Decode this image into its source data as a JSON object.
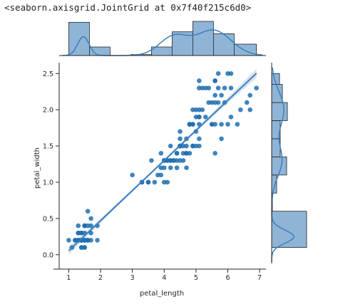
{
  "caption": "<seaborn.axisgrid.JointGrid at 0x7f40f215c6d0>",
  "colors": {
    "point": "#1f6fb0",
    "line": "#3a7fc0",
    "bar_fill": "#8fb4d6",
    "bar_edge": "#262626",
    "band": "#c8d7e6",
    "axis": "#262626"
  },
  "chart_data": {
    "type": "scatter",
    "title": "",
    "xlabel": "petal_length",
    "ylabel": "petal_width",
    "xlim": [
      0.7,
      7.2
    ],
    "ylim": [
      -0.12,
      2.65
    ],
    "xticks": [
      1,
      2,
      3,
      4,
      5,
      6,
      7
    ],
    "yticks": [
      0.0,
      0.5,
      1.0,
      1.5,
      2.0,
      2.5
    ],
    "ytick_labels": [
      "0.0",
      "0.5",
      "1.0",
      "1.5",
      "2.0",
      "2.5"
    ],
    "regression": {
      "intercept": -0.36,
      "slope": 0.415,
      "x_range": [
        1.0,
        6.9
      ]
    },
    "marginal_x": {
      "bin_edges": [
        1.0,
        1.65,
        2.3,
        2.95,
        3.6,
        4.25,
        4.9,
        5.55,
        6.2,
        6.9
      ],
      "counts": [
        35,
        9,
        0,
        1,
        9,
        25,
        36,
        23,
        12
      ]
    },
    "marginal_y": {
      "bin_edges": [
        0.1,
        0.6,
        0.85,
        1.1,
        1.35,
        1.6,
        1.85,
        2.1,
        2.35,
        2.5
      ],
      "counts": [
        49,
        1,
        7,
        21,
        12,
        12,
        22,
        15,
        11
      ]
    },
    "points": [
      [
        1.4,
        0.2
      ],
      [
        1.4,
        0.2
      ],
      [
        1.3,
        0.2
      ],
      [
        1.5,
        0.2
      ],
      [
        1.4,
        0.2
      ],
      [
        1.7,
        0.4
      ],
      [
        1.4,
        0.3
      ],
      [
        1.5,
        0.2
      ],
      [
        1.4,
        0.2
      ],
      [
        1.5,
        0.1
      ],
      [
        1.5,
        0.2
      ],
      [
        1.6,
        0.2
      ],
      [
        1.4,
        0.1
      ],
      [
        1.1,
        0.1
      ],
      [
        1.2,
        0.2
      ],
      [
        1.5,
        0.4
      ],
      [
        1.3,
        0.4
      ],
      [
        1.4,
        0.3
      ],
      [
        1.7,
        0.3
      ],
      [
        1.5,
        0.3
      ],
      [
        1.7,
        0.2
      ],
      [
        1.5,
        0.4
      ],
      [
        1.0,
        0.2
      ],
      [
        1.7,
        0.5
      ],
      [
        1.9,
        0.2
      ],
      [
        1.6,
        0.2
      ],
      [
        1.6,
        0.4
      ],
      [
        1.5,
        0.2
      ],
      [
        1.4,
        0.2
      ],
      [
        1.6,
        0.2
      ],
      [
        1.6,
        0.2
      ],
      [
        1.5,
        0.4
      ],
      [
        1.5,
        0.1
      ],
      [
        1.4,
        0.2
      ],
      [
        1.5,
        0.2
      ],
      [
        1.2,
        0.2
      ],
      [
        1.3,
        0.2
      ],
      [
        1.4,
        0.1
      ],
      [
        1.3,
        0.2
      ],
      [
        1.5,
        0.2
      ],
      [
        1.3,
        0.3
      ],
      [
        1.3,
        0.3
      ],
      [
        1.3,
        0.2
      ],
      [
        1.6,
        0.6
      ],
      [
        1.9,
        0.4
      ],
      [
        1.4,
        0.3
      ],
      [
        1.6,
        0.2
      ],
      [
        1.4,
        0.2
      ],
      [
        1.5,
        0.2
      ],
      [
        1.4,
        0.2
      ],
      [
        4.7,
        1.4
      ],
      [
        4.5,
        1.5
      ],
      [
        4.9,
        1.5
      ],
      [
        4.0,
        1.3
      ],
      [
        4.6,
        1.5
      ],
      [
        4.5,
        1.3
      ],
      [
        4.7,
        1.6
      ],
      [
        3.3,
        1.0
      ],
      [
        4.6,
        1.3
      ],
      [
        3.9,
        1.4
      ],
      [
        3.5,
        1.0
      ],
      [
        4.2,
        1.5
      ],
      [
        4.0,
        1.0
      ],
      [
        4.7,
        1.4
      ],
      [
        3.6,
        1.3
      ],
      [
        4.4,
        1.4
      ],
      [
        4.5,
        1.5
      ],
      [
        4.1,
        1.0
      ],
      [
        4.5,
        1.5
      ],
      [
        3.9,
        1.1
      ],
      [
        4.8,
        1.8
      ],
      [
        4.0,
        1.3
      ],
      [
        4.9,
        1.5
      ],
      [
        4.7,
        1.2
      ],
      [
        4.3,
        1.3
      ],
      [
        4.4,
        1.4
      ],
      [
        4.8,
        1.4
      ],
      [
        5.0,
        1.7
      ],
      [
        4.5,
        1.5
      ],
      [
        3.5,
        1.0
      ],
      [
        3.8,
        1.1
      ],
      [
        3.7,
        1.0
      ],
      [
        3.9,
        1.2
      ],
      [
        5.1,
        1.6
      ],
      [
        4.5,
        1.5
      ],
      [
        4.5,
        1.6
      ],
      [
        4.7,
        1.5
      ],
      [
        4.4,
        1.3
      ],
      [
        4.1,
        1.3
      ],
      [
        4.0,
        1.3
      ],
      [
        4.4,
        1.2
      ],
      [
        4.6,
        1.4
      ],
      [
        4.0,
        1.2
      ],
      [
        3.3,
        1.0
      ],
      [
        4.2,
        1.3
      ],
      [
        4.2,
        1.2
      ],
      [
        4.2,
        1.3
      ],
      [
        4.3,
        1.3
      ],
      [
        3.0,
        1.1
      ],
      [
        4.1,
        1.3
      ],
      [
        6.0,
        2.5
      ],
      [
        5.1,
        1.9
      ],
      [
        5.9,
        2.1
      ],
      [
        5.6,
        1.8
      ],
      [
        5.8,
        2.2
      ],
      [
        6.6,
        2.1
      ],
      [
        4.5,
        1.7
      ],
      [
        6.3,
        1.8
      ],
      [
        5.8,
        1.8
      ],
      [
        6.1,
        2.5
      ],
      [
        5.1,
        2.0
      ],
      [
        5.3,
        1.9
      ],
      [
        5.5,
        2.1
      ],
      [
        5.0,
        2.0
      ],
      [
        5.1,
        2.4
      ],
      [
        5.3,
        2.3
      ],
      [
        5.5,
        1.8
      ],
      [
        6.7,
        2.2
      ],
      [
        6.9,
        2.3
      ],
      [
        5.0,
        1.5
      ],
      [
        5.7,
        2.3
      ],
      [
        4.9,
        2.0
      ],
      [
        6.7,
        2.0
      ],
      [
        4.9,
        1.8
      ],
      [
        5.7,
        2.1
      ],
      [
        6.0,
        1.8
      ],
      [
        4.8,
        1.8
      ],
      [
        4.9,
        1.8
      ],
      [
        5.6,
        2.1
      ],
      [
        5.8,
        1.6
      ],
      [
        6.1,
        1.9
      ],
      [
        6.4,
        2.0
      ],
      [
        5.6,
        2.2
      ],
      [
        5.1,
        1.5
      ],
      [
        5.6,
        1.4
      ],
      [
        6.1,
        2.3
      ],
      [
        5.6,
        2.4
      ],
      [
        5.5,
        1.8
      ],
      [
        4.8,
        1.8
      ],
      [
        5.4,
        2.1
      ],
      [
        5.6,
        2.4
      ],
      [
        5.1,
        2.3
      ],
      [
        5.1,
        1.9
      ],
      [
        5.9,
        2.3
      ],
      [
        5.7,
        2.5
      ],
      [
        5.2,
        2.3
      ],
      [
        5.0,
        1.9
      ],
      [
        5.2,
        2.0
      ],
      [
        5.4,
        2.3
      ],
      [
        5.1,
        1.8
      ]
    ]
  }
}
